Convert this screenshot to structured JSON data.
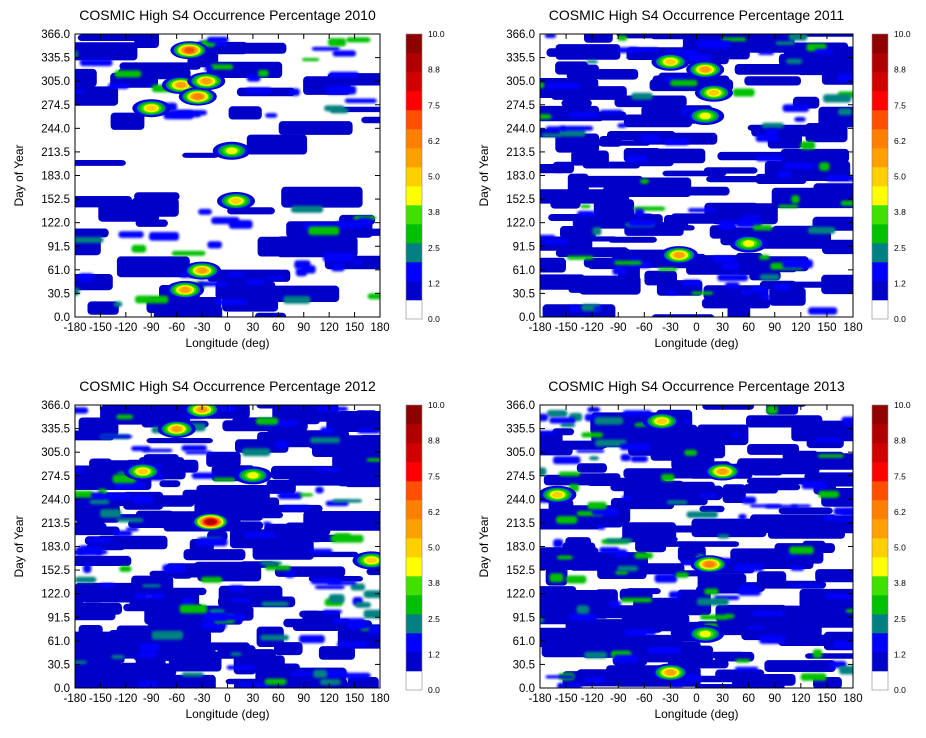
{
  "chart_data": [
    {
      "type": "heatmap",
      "title": "COSMIC High S4 Occurrence Percentage 2010",
      "xlabel": "Longitude (deg)",
      "ylabel": "Day of Year",
      "xlim": [
        -180,
        180
      ],
      "ylim": [
        0,
        366
      ],
      "x_ticks": [
        "-180",
        "-150",
        "-120",
        "-90",
        "-60",
        "-30",
        "0",
        "30",
        "60",
        "90",
        "120",
        "150",
        "180"
      ],
      "y_ticks": [
        "0.0",
        "30.5",
        "61.0",
        "91.5",
        "122.0",
        "152.5",
        "183.0",
        "213.5",
        "244.0",
        "274.5",
        "305.0",
        "335.5",
        "366.0"
      ],
      "colorbar_ticks": [
        "0.0",
        "1.2",
        "2.5",
        "3.8",
        "5.0",
        "6.2",
        "7.5",
        "8.8",
        "10.0"
      ],
      "hotspots": [
        {
          "lon": -45,
          "day": 345,
          "value": 7.0
        },
        {
          "lon": -55,
          "day": 300,
          "value": 6.0
        },
        {
          "lon": -35,
          "day": 285,
          "value": 6.5
        },
        {
          "lon": -25,
          "day": 305,
          "value": 6.0
        },
        {
          "lon": -30,
          "day": 60,
          "value": 6.0
        },
        {
          "lon": -50,
          "day": 35,
          "value": 5.5
        },
        {
          "lon": -90,
          "day": 270,
          "value": 5.0
        },
        {
          "lon": 10,
          "day": 150,
          "value": 5.0
        },
        {
          "lon": 5,
          "day": 215,
          "value": 4.0
        }
      ]
    },
    {
      "type": "heatmap",
      "title": "COSMIC High S4 Occurrence Percentage 2011",
      "xlabel": "Longitude (deg)",
      "ylabel": "Day of Year",
      "xlim": [
        -180,
        180
      ],
      "ylim": [
        0,
        366
      ],
      "x_ticks": [
        "-180",
        "-150",
        "-120",
        "-90",
        "-60",
        "-30",
        "0",
        "30",
        "60",
        "90",
        "120",
        "150",
        "180"
      ],
      "y_ticks": [
        "0.0",
        "30.5",
        "61.0",
        "91.5",
        "122.0",
        "152.5",
        "183.0",
        "213.5",
        "244.0",
        "274.5",
        "305.0",
        "335.5",
        "366.0"
      ],
      "colorbar_ticks": [
        "0.0",
        "1.2",
        "2.5",
        "3.8",
        "5.0",
        "6.2",
        "7.5",
        "8.8",
        "10.0"
      ],
      "hotspots": [
        {
          "lon": 10,
          "day": 320,
          "value": 6.0
        },
        {
          "lon": -30,
          "day": 330,
          "value": 5.0
        },
        {
          "lon": -20,
          "day": 80,
          "value": 5.5
        },
        {
          "lon": 20,
          "day": 290,
          "value": 5.0
        },
        {
          "lon": 60,
          "day": 95,
          "value": 4.5
        },
        {
          "lon": 10,
          "day": 260,
          "value": 4.0
        }
      ]
    },
    {
      "type": "heatmap",
      "title": "COSMIC High S4 Occurrence Percentage 2012",
      "xlabel": "Longitude (deg)",
      "ylabel": "Day of Year",
      "xlim": [
        -180,
        180
      ],
      "ylim": [
        0,
        366
      ],
      "x_ticks": [
        "-180",
        "-150",
        "-120",
        "-90",
        "-60",
        "-30",
        "0",
        "30",
        "60",
        "90",
        "120",
        "150",
        "180"
      ],
      "y_ticks": [
        "0.0",
        "30.5",
        "61.0",
        "91.5",
        "122.0",
        "152.5",
        "183.0",
        "213.5",
        "244.0",
        "274.5",
        "305.0",
        "335.5",
        "366.0"
      ],
      "colorbar_ticks": [
        "0.0",
        "1.2",
        "2.5",
        "3.8",
        "5.0",
        "6.2",
        "7.5",
        "8.8",
        "10.0"
      ],
      "hotspots": [
        {
          "lon": -60,
          "day": 335,
          "value": 6.0
        },
        {
          "lon": -30,
          "day": 360,
          "value": 5.5
        },
        {
          "lon": -20,
          "day": 215,
          "value": 9.0
        },
        {
          "lon": -100,
          "day": 280,
          "value": 5.0
        },
        {
          "lon": 170,
          "day": 165,
          "value": 5.0
        },
        {
          "lon": 30,
          "day": 275,
          "value": 4.5
        }
      ]
    },
    {
      "type": "heatmap",
      "title": "COSMIC High S4 Occurrence Percentage 2013",
      "xlabel": "Longitude (deg)",
      "ylabel": "Day of Year",
      "xlim": [
        -180,
        180
      ],
      "ylim": [
        0,
        366
      ],
      "x_ticks": [
        "-180",
        "-150",
        "-120",
        "-90",
        "-60",
        "-30",
        "0",
        "30",
        "60",
        "90",
        "120",
        "150",
        "180"
      ],
      "y_ticks": [
        "0.0",
        "30.5",
        "61.0",
        "91.5",
        "122.0",
        "152.5",
        "183.0",
        "213.5",
        "244.0",
        "274.5",
        "305.0",
        "335.5",
        "366.0"
      ],
      "colorbar_ticks": [
        "0.0",
        "1.2",
        "2.5",
        "3.8",
        "5.0",
        "6.2",
        "7.5",
        "8.8",
        "10.0"
      ],
      "hotspots": [
        {
          "lon": 15,
          "day": 160,
          "value": 6.5
        },
        {
          "lon": 30,
          "day": 280,
          "value": 5.5
        },
        {
          "lon": -40,
          "day": 345,
          "value": 5.0
        },
        {
          "lon": -30,
          "day": 20,
          "value": 5.5
        },
        {
          "lon": -160,
          "day": 250,
          "value": 5.0
        },
        {
          "lon": 10,
          "day": 70,
          "value": 4.5
        }
      ]
    }
  ],
  "colorscale": [
    "#ffffff",
    "#0000c8",
    "#0000ff",
    "#008080",
    "#00c000",
    "#40e000",
    "#ffff00",
    "#ffd000",
    "#ffa000",
    "#ff8000",
    "#ff5000",
    "#ff0000",
    "#d00000",
    "#b00000",
    "#900000"
  ]
}
